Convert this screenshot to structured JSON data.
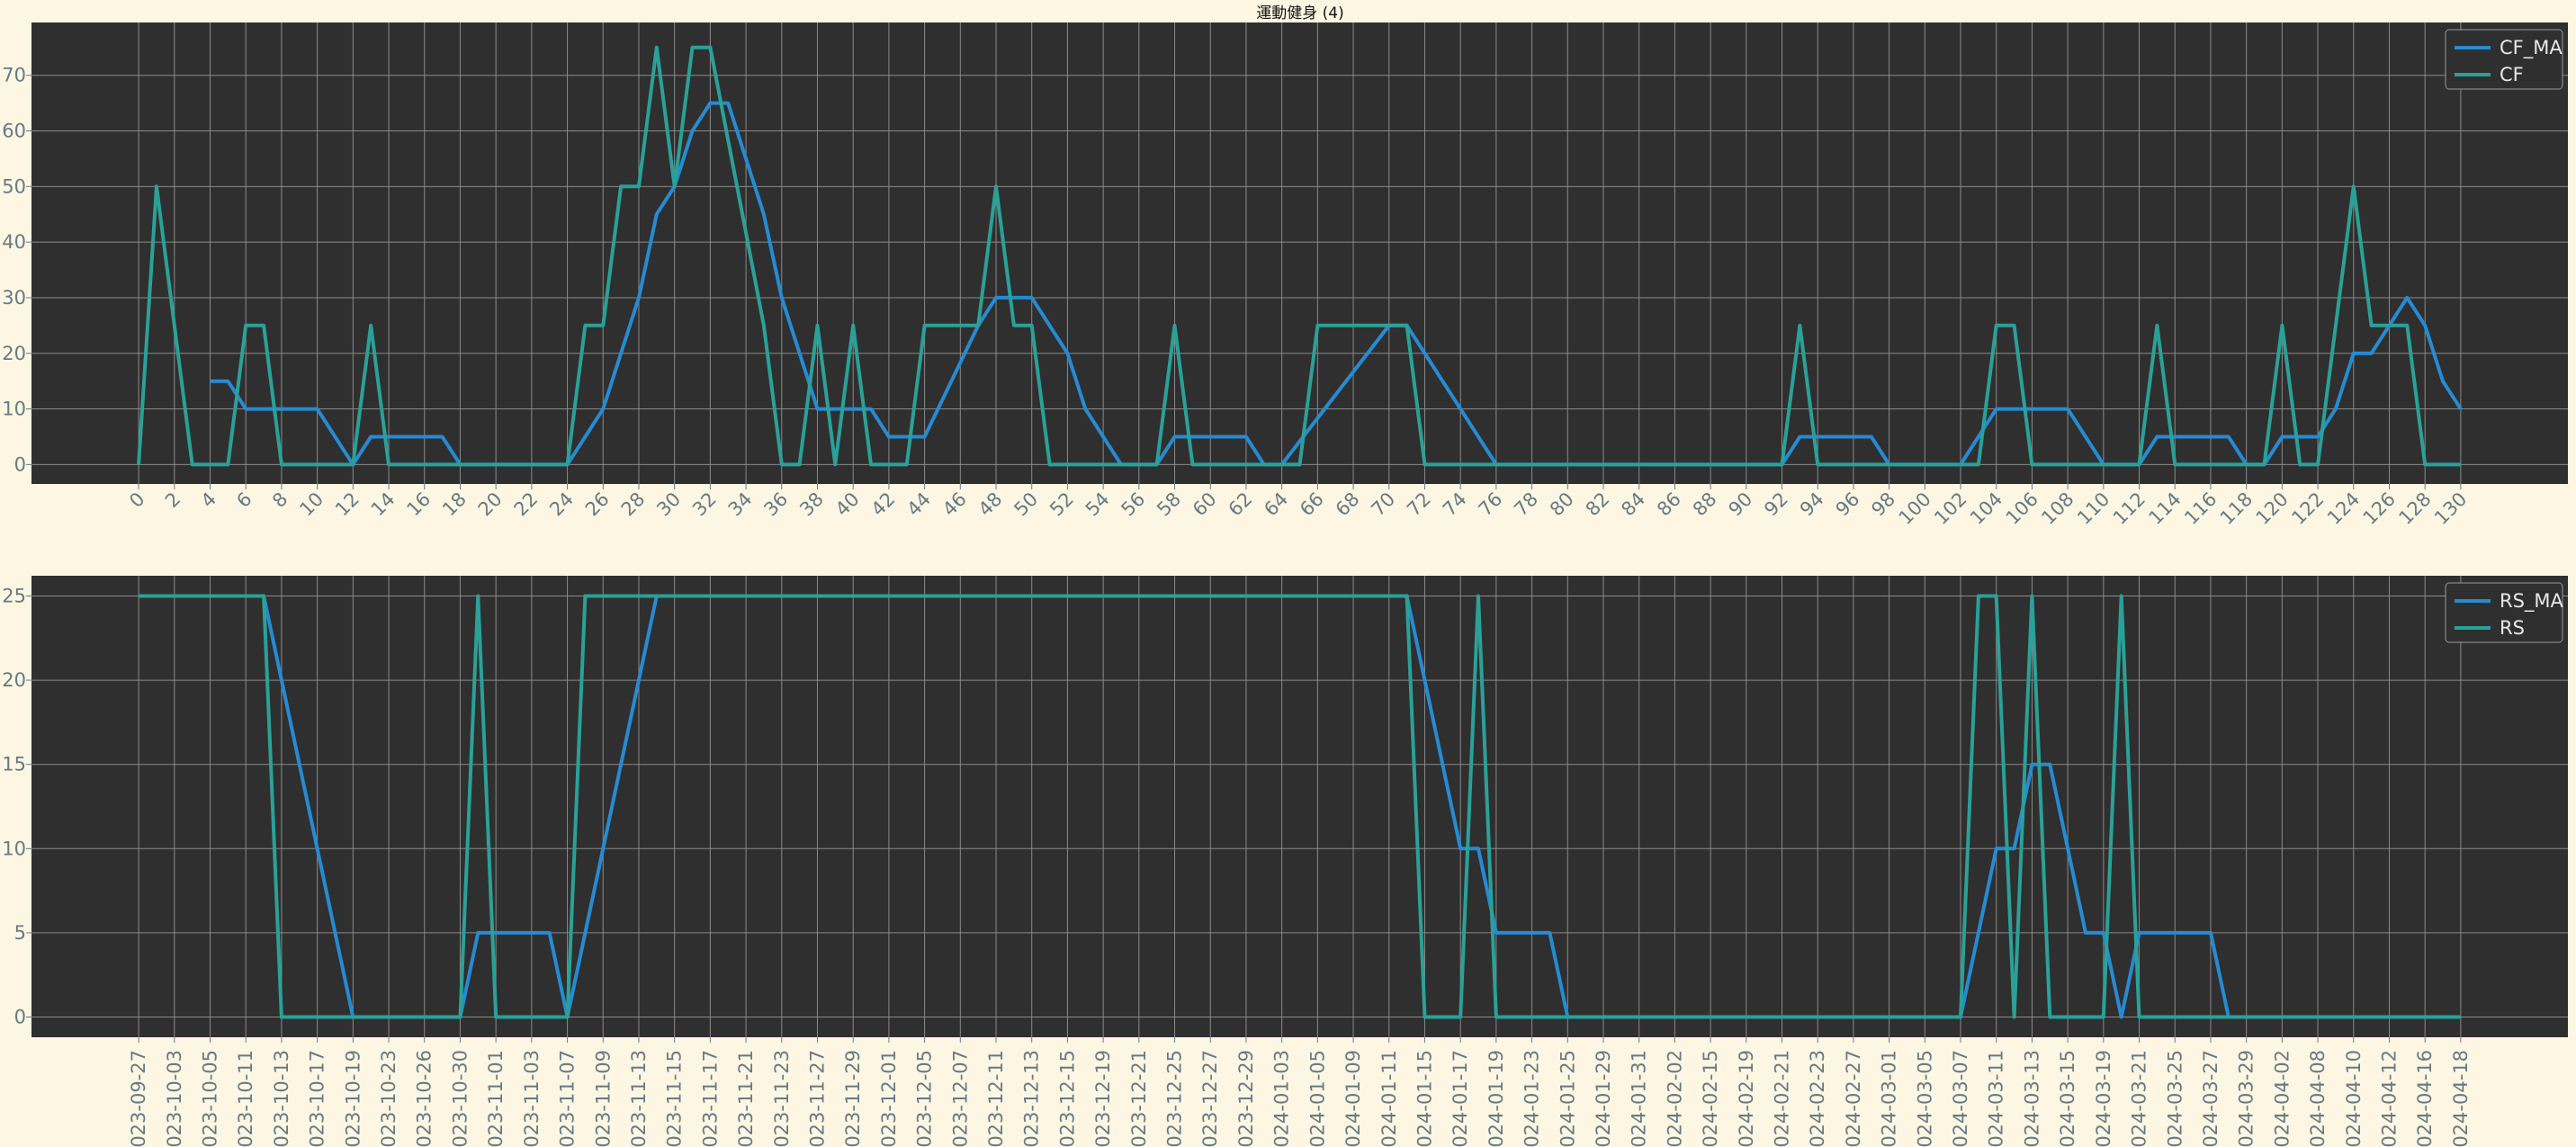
{
  "title": "運動健身 (4)",
  "colors": {
    "figure_bg": "#fdf6e3",
    "axes_bg": "#2f2f2f",
    "grid": "#8a8a8a",
    "tick_text": "#657b83",
    "ma_line": "#268bd2",
    "raw_line": "#2aa198"
  },
  "chart_data": [
    {
      "type": "line",
      "title": "運動健身 (4)",
      "xlabel": "",
      "ylabel": "",
      "xlim": [
        -6,
        136
      ],
      "ylim": [
        -3.5,
        79.5
      ],
      "xticks": [
        0,
        2,
        4,
        6,
        8,
        10,
        12,
        14,
        16,
        18,
        20,
        22,
        24,
        26,
        28,
        30,
        32,
        34,
        36,
        38,
        40,
        42,
        44,
        46,
        48,
        50,
        52,
        54,
        56,
        58,
        60,
        62,
        64,
        66,
        68,
        70,
        72,
        74,
        76,
        78,
        80,
        82,
        84,
        86,
        88,
        90,
        92,
        94,
        96,
        98,
        100,
        102,
        104,
        106,
        108,
        110,
        112,
        114,
        116,
        118,
        120,
        122,
        124,
        126,
        128,
        130
      ],
      "yticks": [
        0,
        10,
        20,
        30,
        40,
        50,
        60,
        70
      ],
      "grid": true,
      "legend_position": "top-right",
      "series": [
        {
          "name": "CF_MA",
          "color": "#268bd2",
          "points": [
            [
              4,
              15
            ],
            [
              5,
              15
            ],
            [
              6,
              10
            ],
            [
              10,
              10
            ],
            [
              12,
              0
            ],
            [
              13,
              5
            ],
            [
              17,
              5
            ],
            [
              18,
              0
            ],
            [
              24,
              0
            ],
            [
              26,
              10
            ],
            [
              28,
              30
            ],
            [
              29,
              45
            ],
            [
              30,
              50
            ],
            [
              31,
              60
            ],
            [
              32,
              65
            ],
            [
              33,
              65
            ],
            [
              35,
              45
            ],
            [
              36,
              30
            ],
            [
              38,
              10
            ],
            [
              41,
              10
            ],
            [
              42,
              5
            ],
            [
              44,
              5
            ],
            [
              47,
              25
            ],
            [
              48,
              30
            ],
            [
              50,
              30
            ],
            [
              52,
              20
            ],
            [
              53,
              10
            ],
            [
              55,
              0
            ],
            [
              57,
              0
            ],
            [
              58,
              5
            ],
            [
              62,
              5
            ],
            [
              63,
              0
            ],
            [
              64,
              0
            ],
            [
              70,
              25
            ],
            [
              71,
              25
            ],
            [
              76,
              0
            ],
            [
              92,
              0
            ],
            [
              93,
              5
            ],
            [
              97,
              5
            ],
            [
              98,
              0
            ],
            [
              102,
              0
            ],
            [
              104,
              10
            ],
            [
              108,
              10
            ],
            [
              110,
              0
            ],
            [
              112,
              0
            ],
            [
              113,
              5
            ],
            [
              117,
              5
            ],
            [
              118,
              0
            ],
            [
              119,
              0
            ],
            [
              120,
              5
            ],
            [
              122,
              5
            ],
            [
              123,
              10
            ],
            [
              124,
              20
            ],
            [
              125,
              20
            ],
            [
              127,
              30
            ],
            [
              128,
              25
            ],
            [
              129,
              15
            ],
            [
              130,
              10
            ]
          ]
        },
        {
          "name": "CF",
          "color": "#2aa198",
          "points": [
            [
              0,
              0
            ],
            [
              1,
              50
            ],
            [
              3,
              0
            ],
            [
              5,
              0
            ],
            [
              6,
              25
            ],
            [
              7,
              25
            ],
            [
              8,
              0
            ],
            [
              12,
              0
            ],
            [
              13,
              25
            ],
            [
              14,
              0
            ],
            [
              24,
              0
            ],
            [
              25,
              25
            ],
            [
              26,
              25
            ],
            [
              27,
              50
            ],
            [
              28,
              50
            ],
            [
              29,
              75
            ],
            [
              30,
              50
            ],
            [
              31,
              75
            ],
            [
              32,
              75
            ],
            [
              35,
              25
            ],
            [
              36,
              0
            ],
            [
              37,
              0
            ],
            [
              38,
              25
            ],
            [
              39,
              0
            ],
            [
              40,
              25
            ],
            [
              41,
              0
            ],
            [
              43,
              0
            ],
            [
              44,
              25
            ],
            [
              47,
              25
            ],
            [
              48,
              50
            ],
            [
              49,
              25
            ],
            [
              50,
              25
            ],
            [
              51,
              0
            ],
            [
              57,
              0
            ],
            [
              58,
              25
            ],
            [
              59,
              0
            ],
            [
              65,
              0
            ],
            [
              66,
              25
            ],
            [
              71,
              25
            ],
            [
              72,
              0
            ],
            [
              92,
              0
            ],
            [
              93,
              25
            ],
            [
              94,
              0
            ],
            [
              103,
              0
            ],
            [
              104,
              25
            ],
            [
              105,
              25
            ],
            [
              106,
              0
            ],
            [
              112,
              0
            ],
            [
              113,
              25
            ],
            [
              114,
              0
            ],
            [
              119,
              0
            ],
            [
              120,
              25
            ],
            [
              121,
              0
            ],
            [
              122,
              0
            ],
            [
              124,
              50
            ],
            [
              125,
              25
            ],
            [
              127,
              25
            ],
            [
              128,
              0
            ],
            [
              130,
              0
            ]
          ]
        }
      ]
    },
    {
      "type": "line",
      "title": "",
      "xlabel": "",
      "ylabel": "",
      "categories": [
        "2023-09-27",
        "2023-10-03",
        "2023-10-05",
        "2023-10-11",
        "2023-10-13",
        "2023-10-17",
        "2023-10-19",
        "2023-10-23",
        "2023-10-26",
        "2023-10-30",
        "2023-11-01",
        "2023-11-03",
        "2023-11-07",
        "2023-11-09",
        "2023-11-13",
        "2023-11-15",
        "2023-11-17",
        "2023-11-21",
        "2023-11-23",
        "2023-11-27",
        "2023-11-29",
        "2023-12-01",
        "2023-12-05",
        "2023-12-07",
        "2023-12-11",
        "2023-12-13",
        "2023-12-15",
        "2023-12-19",
        "2023-12-21",
        "2023-12-25",
        "2023-12-27",
        "2023-12-29",
        "2024-01-03",
        "2024-01-05",
        "2024-01-09",
        "2024-01-11",
        "2024-01-15",
        "2024-01-17",
        "2024-01-19",
        "2024-01-23",
        "2024-01-25",
        "2024-01-29",
        "2024-01-31",
        "2024-02-02",
        "2024-02-15",
        "2024-02-19",
        "2024-02-21",
        "2024-02-23",
        "2024-02-27",
        "2024-03-01",
        "2024-03-05",
        "2024-03-07",
        "2024-03-11",
        "2024-03-13",
        "2024-03-15",
        "2024-03-19",
        "2024-03-21",
        "2024-03-25",
        "2024-03-27",
        "2024-03-29",
        "2024-04-02",
        "2024-04-08",
        "2024-04-10",
        "2024-04-12",
        "2024-04-16",
        "2024-04-18"
      ],
      "tick_step": 2,
      "xlim": [
        -6,
        136
      ],
      "ylim": [
        -1.2,
        26.2
      ],
      "yticks": [
        0,
        5,
        10,
        15,
        20,
        25
      ],
      "grid": true,
      "legend_position": "top-right",
      "series": [
        {
          "name": "RS_MA",
          "color": "#268bd2",
          "points": [
            [
              0,
              25
            ],
            [
              7,
              25
            ],
            [
              12,
              0
            ],
            [
              18,
              0
            ],
            [
              19,
              5
            ],
            [
              23,
              5
            ],
            [
              24,
              0
            ],
            [
              29,
              25
            ],
            [
              71,
              25
            ],
            [
              74,
              10
            ],
            [
              75,
              10
            ],
            [
              76,
              5
            ],
            [
              79,
              5
            ],
            [
              80,
              0
            ],
            [
              102,
              0
            ],
            [
              104,
              10
            ],
            [
              105,
              10
            ],
            [
              106,
              15
            ],
            [
              107,
              15
            ],
            [
              109,
              5
            ],
            [
              110,
              5
            ],
            [
              111,
              0
            ],
            [
              112,
              5
            ],
            [
              116,
              5
            ],
            [
              117,
              0
            ],
            [
              130,
              0
            ]
          ]
        },
        {
          "name": "RS",
          "color": "#2aa198",
          "points": [
            [
              0,
              25
            ],
            [
              7,
              25
            ],
            [
              8,
              0
            ],
            [
              18,
              0
            ],
            [
              19,
              25
            ],
            [
              20,
              0
            ],
            [
              24,
              0
            ],
            [
              25,
              25
            ],
            [
              71,
              25
            ],
            [
              72,
              0
            ],
            [
              74,
              0
            ],
            [
              75,
              25
            ],
            [
              76,
              0
            ],
            [
              102,
              0
            ],
            [
              103,
              25
            ],
            [
              104,
              25
            ],
            [
              105,
              0
            ],
            [
              106,
              25
            ],
            [
              107,
              0
            ],
            [
              110,
              0
            ],
            [
              111,
              25
            ],
            [
              112,
              0
            ],
            [
              130,
              0
            ]
          ]
        }
      ]
    }
  ]
}
